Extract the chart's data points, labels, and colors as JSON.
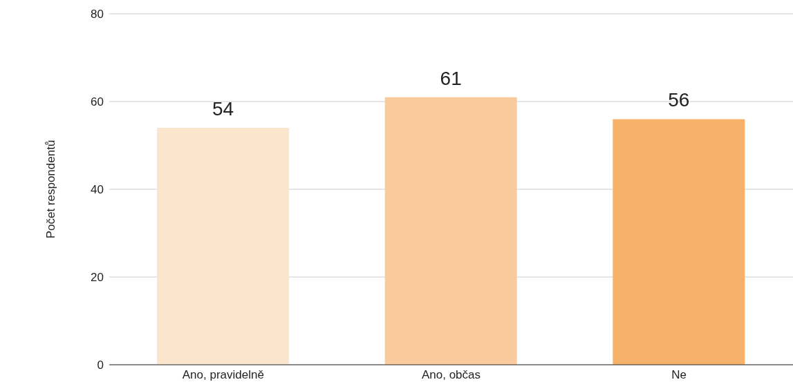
{
  "chart_data": {
    "type": "bar",
    "ylabel": "Počet respondentů",
    "categories": [
      "Ano, pravidelně",
      "Ano, občas",
      "Ne"
    ],
    "values": [
      54,
      61,
      56
    ],
    "colors": [
      "#fce5cd",
      "#f9cb9c",
      "#f6b26b"
    ],
    "ylim": [
      0,
      80
    ],
    "yticks": [
      0,
      20,
      40,
      60,
      80
    ],
    "grid": "y",
    "data_labels": true
  }
}
